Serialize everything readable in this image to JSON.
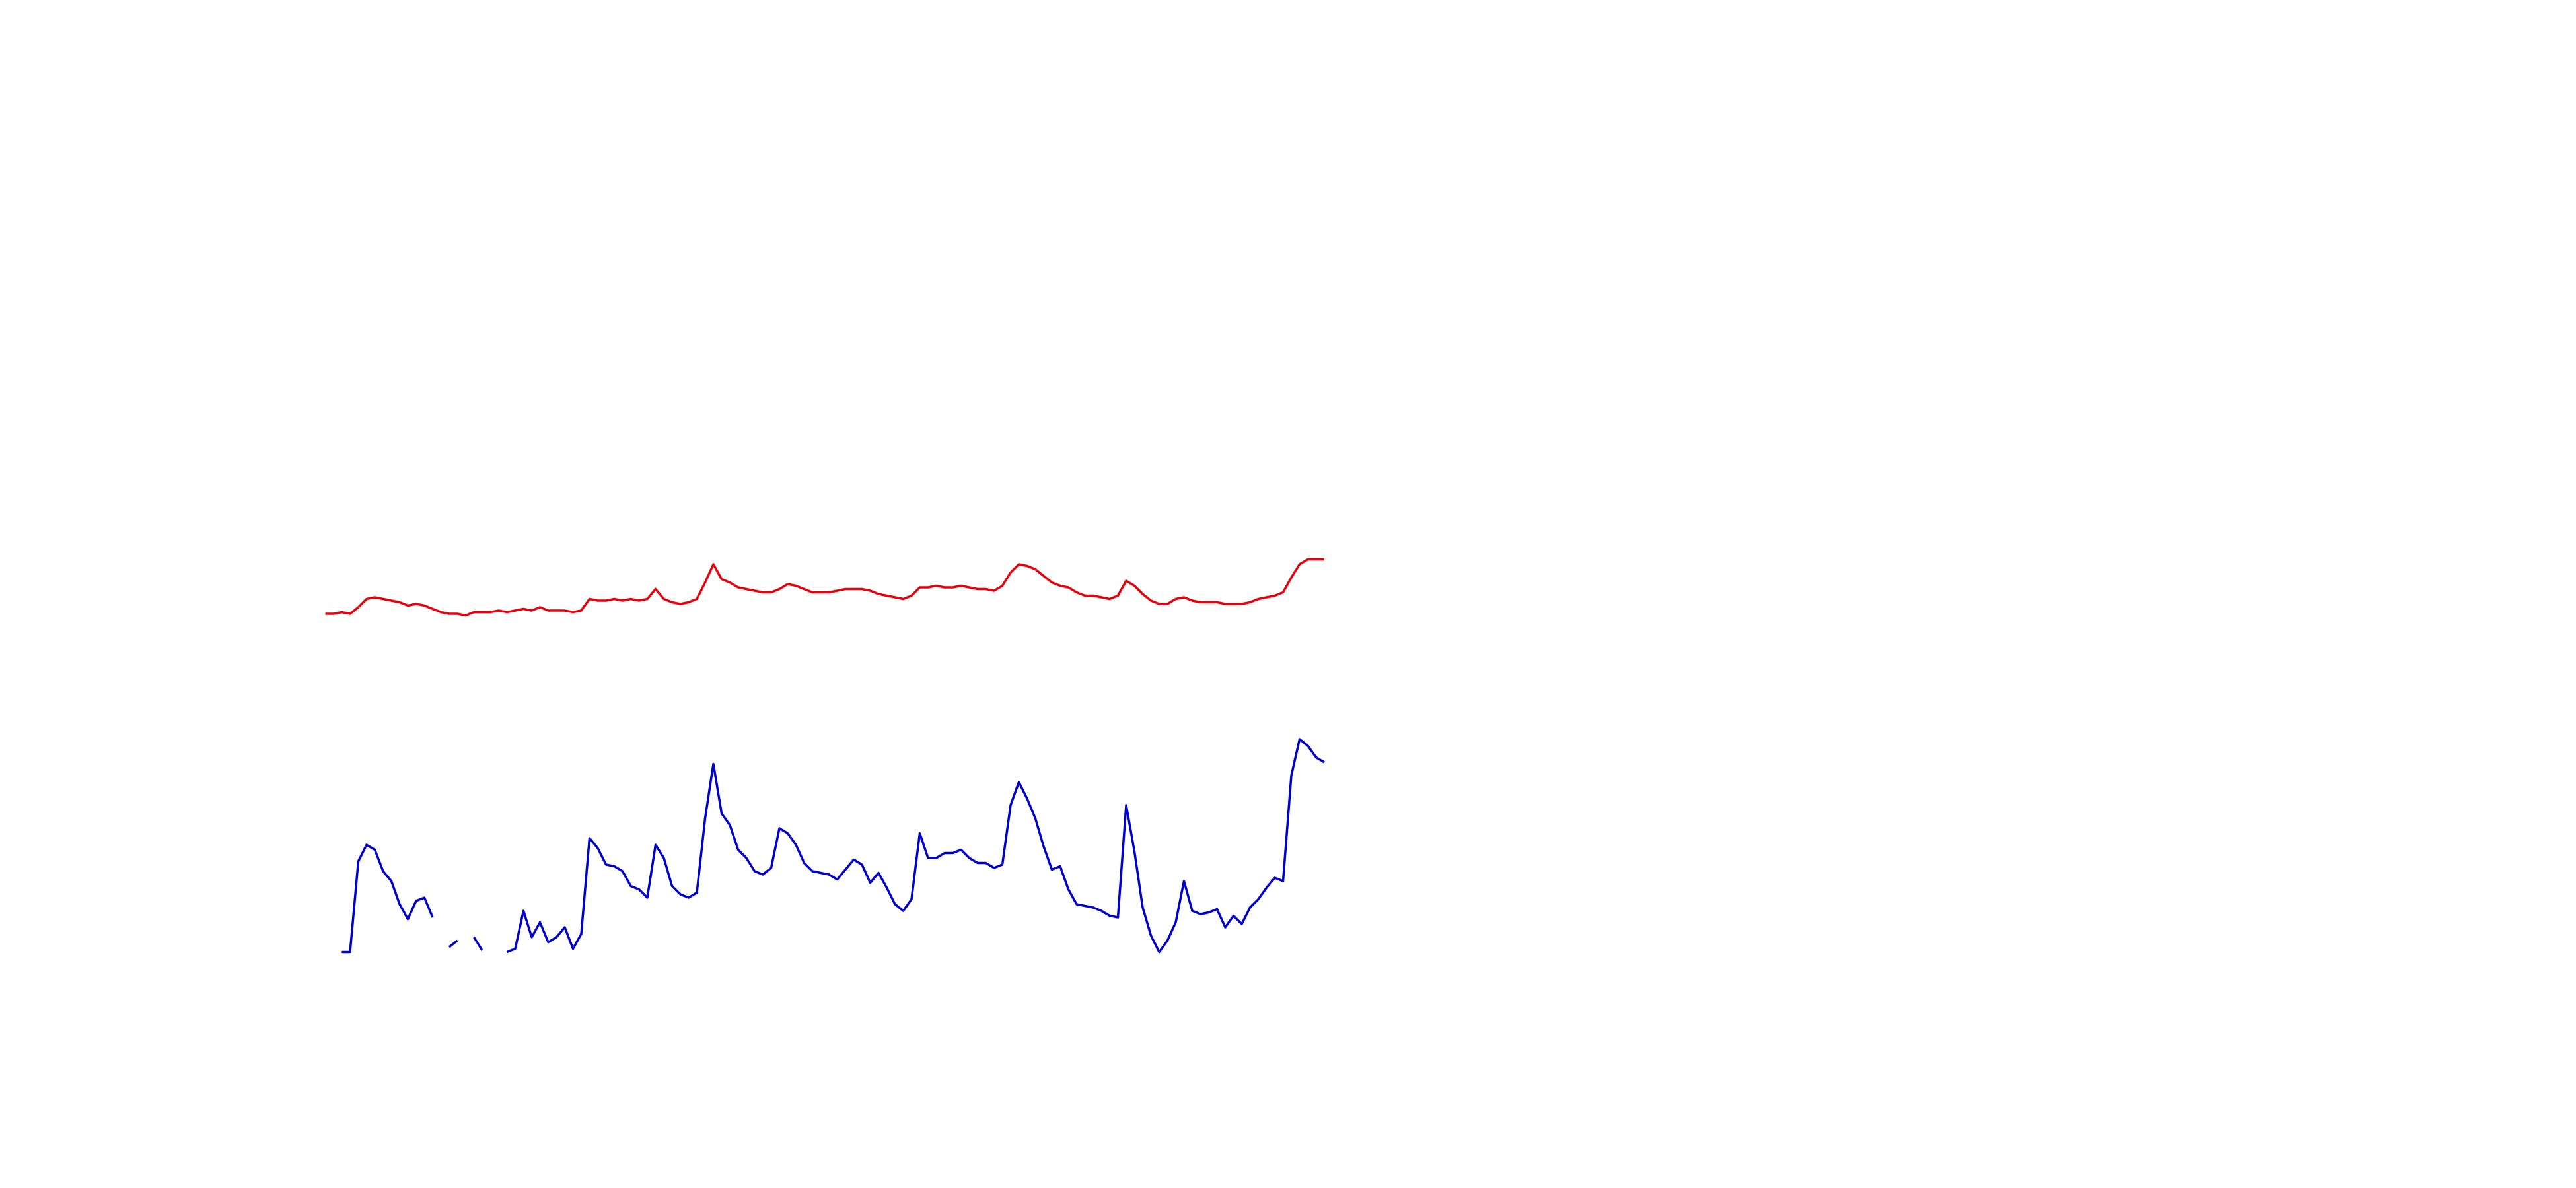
{
  "chart_data": {
    "type": "line",
    "x": [
      197,
      202,
      207,
      212,
      217,
      222,
      227,
      232,
      237,
      242,
      247,
      252,
      257,
      262,
      267,
      272,
      277,
      282,
      287,
      292,
      297,
      302,
      307,
      312,
      317,
      322,
      327,
      332,
      337,
      342,
      347,
      352,
      357,
      362,
      367,
      372,
      377,
      382,
      387,
      392,
      397,
      402,
      407,
      412,
      417,
      422,
      427,
      432,
      437,
      442,
      447,
      452,
      457,
      462,
      467,
      472,
      477,
      482,
      487,
      492,
      497,
      502,
      507,
      512,
      517,
      522,
      527,
      532,
      537,
      542,
      547,
      552,
      557,
      562,
      567,
      572,
      577,
      582,
      587,
      592,
      597,
      602,
      607,
      612,
      617,
      622,
      627,
      632,
      637,
      642,
      647,
      652,
      657,
      662,
      667,
      672,
      677,
      682,
      687,
      692,
      697,
      702,
      707,
      712,
      717,
      722,
      727,
      732,
      737,
      742,
      747,
      752,
      757,
      762,
      767,
      772,
      777,
      782,
      787,
      792,
      797,
      802
    ],
    "xlim": [
      0,
      1560
    ],
    "ylim": [
      0,
      578
    ],
    "series": [
      {
        "color": "#e8000b",
        "values": [
          206,
          206,
          207,
          206,
          210,
          215,
          216,
          215,
          214,
          213,
          211,
          212,
          211,
          209,
          207,
          206,
          206,
          205,
          207,
          207,
          207,
          208,
          207,
          208,
          209,
          208,
          210,
          208,
          208,
          208,
          207,
          208,
          215,
          214,
          214,
          215,
          214,
          215,
          214,
          215,
          221,
          215,
          213,
          212,
          213,
          215,
          225,
          236,
          227,
          225,
          222,
          221,
          220,
          219,
          219,
          221,
          224,
          223,
          221,
          219,
          219,
          219,
          220,
          221,
          221,
          221,
          220,
          218,
          217,
          216,
          215,
          217,
          222,
          222,
          223,
          222,
          222,
          223,
          222,
          221,
          221,
          220,
          223,
          231,
          236,
          235,
          233,
          229,
          225,
          223,
          222,
          219,
          217,
          217,
          216,
          215,
          217,
          226,
          223,
          218,
          214,
          212,
          212,
          215,
          216,
          214,
          213,
          213,
          213,
          212,
          212,
          212,
          213,
          215,
          216,
          217,
          219,
          228,
          236,
          239,
          239,
          239
        ]
      },
      {
        "color": "#0000d0",
        "values": [
          null,
          null,
          1,
          1,
          56,
          66,
          63,
          50,
          44,
          30,
          21,
          32,
          34,
          22,
          null,
          4,
          8,
          null,
          10,
          2,
          null,
          null,
          1,
          3,
          26,
          10,
          19,
          7,
          10,
          16,
          3,
          12,
          70,
          64,
          54,
          53,
          50,
          41,
          39,
          34,
          66,
          58,
          41,
          36,
          34,
          37,
          82,
          115,
          85,
          78,
          63,
          58,
          50,
          48,
          52,
          76,
          73,
          66,
          55,
          50,
          49,
          48,
          45,
          51,
          57,
          54,
          43,
          49,
          40,
          30,
          26,
          33,
          73,
          58,
          58,
          61,
          61,
          63,
          58,
          55,
          55,
          52,
          54,
          90,
          104,
          94,
          82,
          65,
          51,
          53,
          39,
          30,
          29,
          28,
          26,
          23,
          22,
          90,
          62,
          28,
          11,
          1,
          8,
          19,
          44,
          26,
          24,
          25,
          27,
          16,
          23,
          18,
          28,
          33,
          40,
          46,
          44,
          108,
          130,
          126,
          119,
          116
        ]
      }
    ]
  }
}
